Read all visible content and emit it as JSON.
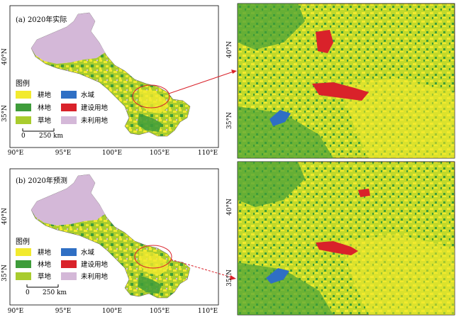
{
  "panels": [
    {
      "label": "(a) 2020年实际",
      "lon_ticks": [
        "90°E",
        "95°E",
        "100°E",
        "105°E",
        "110°E"
      ],
      "lat_ticks": [
        "40°N",
        "35°N"
      ],
      "zoom_lat_ticks": [
        "40°N",
        "35°N"
      ]
    },
    {
      "label": "(b) 2020年预测",
      "lon_ticks": [
        "90°E",
        "95°E",
        "100°E",
        "105°E",
        "110°E"
      ],
      "lat_ticks": [
        "40°N",
        "35°N"
      ],
      "zoom_lat_ticks": [
        "40°N",
        "35°N"
      ]
    }
  ],
  "legend": {
    "title": "图例",
    "items": [
      {
        "label": "耕地",
        "color": "#f2ea2e"
      },
      {
        "label": "水域",
        "color": "#2f6fc4"
      },
      {
        "label": "林地",
        "color": "#3e9c3a"
      },
      {
        "label": "建设用地",
        "color": "#d9222a"
      },
      {
        "label": "草地",
        "color": "#a9cc2e"
      },
      {
        "label": "未利用地",
        "color": "#d4b8d8"
      }
    ]
  },
  "scale_bar": {
    "zero": "0",
    "distance": "250 km"
  }
}
